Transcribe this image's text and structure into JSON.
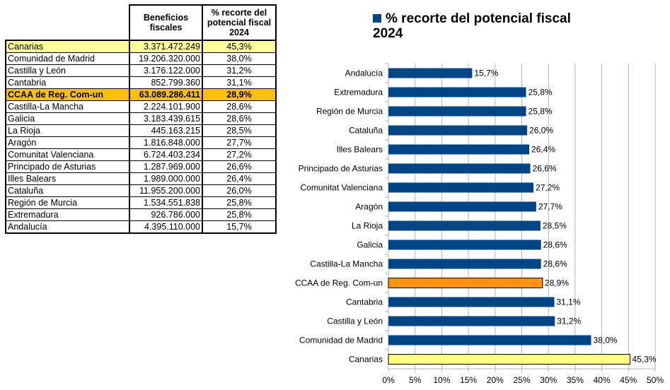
{
  "table": {
    "headers": [
      "Beneficios fiscales",
      "% recorte del potencial fiscal 2024"
    ],
    "header_lines": [
      [
        "Beneficios",
        "fiscales"
      ],
      [
        "% recorte del",
        "potencial fiscal",
        "2024"
      ]
    ],
    "rows": [
      {
        "name": "Canarias",
        "value": "3.371.472.249",
        "pct": "45,3%",
        "highlight": "canarias"
      },
      {
        "name": "Comunidad de Madrid",
        "value": "19.206.320.000",
        "pct": "38,0%"
      },
      {
        "name": "Castilla y León",
        "value": "3.176.122.000",
        "pct": "31,2%"
      },
      {
        "name": "Cantabria",
        "value": "852.799.360",
        "pct": "31,1%"
      },
      {
        "name": "CCAA de Reg. Com-un",
        "value": "63.089.286.411",
        "pct": "28,9%",
        "highlight": "ccaa"
      },
      {
        "name": "Castilla-La Mancha",
        "value": "2.224.101.900",
        "pct": "28,6%"
      },
      {
        "name": "Galicia",
        "value": "3.183.439.615",
        "pct": "28,6%"
      },
      {
        "name": "La Rioja",
        "value": "445.163.215",
        "pct": "28,5%"
      },
      {
        "name": "Aragón",
        "value": "1.816.848.000",
        "pct": "27,7%"
      },
      {
        "name": "Comunitat Valenciana",
        "value": "6.724.403.234",
        "pct": "27,2%"
      },
      {
        "name": "Principado de Asturias",
        "value": "1.287.969.000",
        "pct": "26,6%"
      },
      {
        "name": "Illes Balears",
        "value": "1.989.000.000",
        "pct": "26,4%"
      },
      {
        "name": "Cataluña",
        "value": "11.955.200.000",
        "pct": "26,0%"
      },
      {
        "name": "Región de Murcia",
        "value": "1.534.551.838",
        "pct": "25,8%"
      },
      {
        "name": "Extremadura",
        "value": "926.786.000",
        "pct": "25,8%"
      },
      {
        "name": "Andalucía",
        "value": "4.395.110.000",
        "pct": "15,7%"
      }
    ]
  },
  "chart_data": {
    "type": "bar",
    "orientation": "horizontal",
    "title": "% recorte del potencial fiscal 2024",
    "title_lines": [
      "% recorte del potencial fiscal",
      "2024"
    ],
    "legend": "top",
    "categories": [
      "Andalucía",
      "Extremadura",
      "Región de Murcia",
      "Cataluña",
      "Illes Balears",
      "Principado de Asturias",
      "Comunitat Valenciana",
      "Aragón",
      "La Rioja",
      "Galicia",
      "Castilla-La Mancha",
      "CCAA de Reg. Com-un",
      "Cantabria",
      "Castilla y León",
      "Comunidad de Madrid",
      "Canarias"
    ],
    "values": [
      15.7,
      25.8,
      25.8,
      26.0,
      26.4,
      26.6,
      27.2,
      27.7,
      28.5,
      28.6,
      28.6,
      28.9,
      31.1,
      31.2,
      38.0,
      45.3
    ],
    "value_labels": [
      "15,7%",
      "25,8%",
      "25,8%",
      "26,0%",
      "26,4%",
      "26,6%",
      "27,2%",
      "27,7%",
      "28,5%",
      "28,6%",
      "28,6%",
      "28,9%",
      "31,1%",
      "31,2%",
      "38,0%",
      "45,3%"
    ],
    "xlim": [
      0,
      50
    ],
    "xticks": [
      "0%",
      "5%",
      "10%",
      "15%",
      "20%",
      "25%",
      "30%",
      "35%",
      "40%",
      "45%",
      "50%"
    ],
    "grid": true,
    "colors": {
      "default": "#004586",
      "CCAA de Reg. Com-un": "#ff950e",
      "Canarias": "#ffff80"
    }
  }
}
